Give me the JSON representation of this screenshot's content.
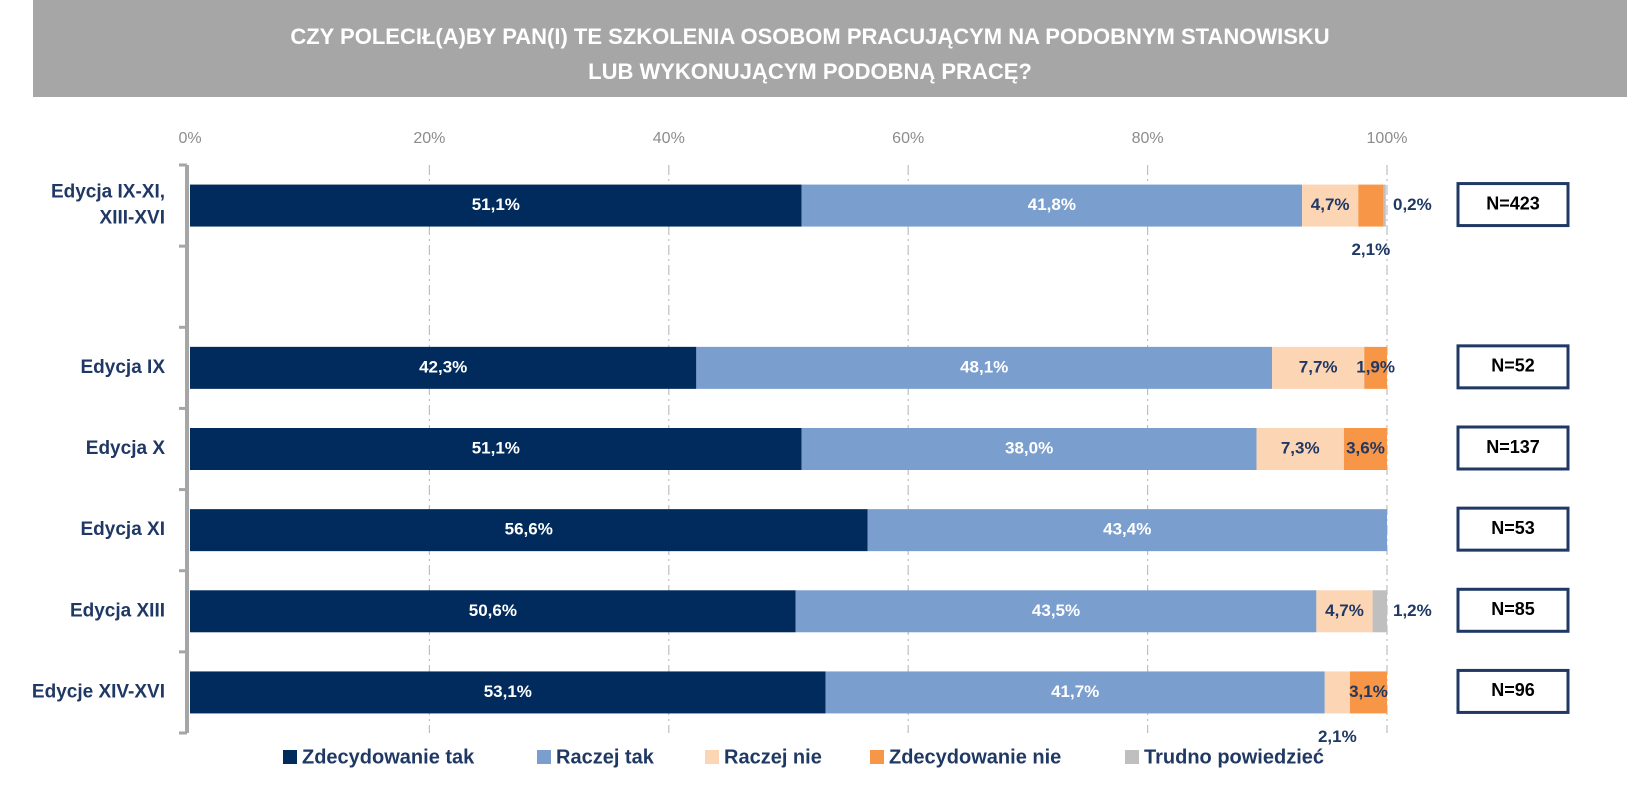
{
  "chart_data": {
    "type": "stacked_bar_horizontal",
    "title": [
      "CZY POLECIŁ(A)BY PAN(I) TE SZKOLENIA OSOBOM PRACUJĄCYM NA PODOBNYM STANOWISKU",
      "LUB WYKONUJĄCYM PODOBNĄ PRACĘ?"
    ],
    "categories": [
      [
        "Edycja IX-XI,",
        "XIII-XVI"
      ],
      null,
      "Edycja IX",
      "Edycja X",
      "Edycja XI",
      "Edycja XIII",
      "Edycje XIV-XVI"
    ],
    "series": [
      {
        "name": "Zdecydowanie tak",
        "color": "#002b5c",
        "values": [
          51.1,
          null,
          42.3,
          51.1,
          56.6,
          50.6,
          53.1
        ],
        "value_labels": [
          "51,1%",
          null,
          "42,3%",
          "51,1%",
          "56,6%",
          "50,6%",
          "53,1%"
        ]
      },
      {
        "name": "Raczej tak",
        "color": "#7a9fcf",
        "values": [
          41.8,
          null,
          48.1,
          38.0,
          43.4,
          43.5,
          41.7
        ],
        "value_labels": [
          "41,8%",
          null,
          "48,1%",
          "38,0%",
          "43,4%",
          "43,5%",
          "41,7%"
        ]
      },
      {
        "name": "Raczej nie",
        "color": "#fcd5b5",
        "values": [
          4.7,
          null,
          7.7,
          7.3,
          null,
          4.7,
          2.1
        ],
        "value_labels": [
          "4,7%",
          null,
          "7,7%",
          "7,3%",
          null,
          "4,7%",
          "2,1%"
        ]
      },
      {
        "name": "Zdecydowanie nie",
        "color": "#f79646",
        "values": [
          2.1,
          null,
          1.9,
          3.6,
          null,
          null,
          3.1
        ],
        "value_labels": [
          "2,1%",
          null,
          "1,9%",
          "3,6%",
          null,
          null,
          "3,1%"
        ]
      },
      {
        "name": "Trudno powiedzieć",
        "color": "#bfbfbf",
        "values": [
          0.2,
          null,
          null,
          null,
          null,
          1.2,
          null
        ],
        "value_labels": [
          "0,2%",
          null,
          null,
          null,
          null,
          "1,2%",
          null
        ]
      }
    ],
    "n_labels": [
      "N=423",
      null,
      "N=52",
      "N=137",
      "N=53",
      "N=85",
      "N=96"
    ],
    "xlim": [
      0,
      100
    ],
    "xticks": [
      {
        "value": 0,
        "label": "0%"
      },
      {
        "value": 20,
        "label": "20%"
      },
      {
        "value": 40,
        "label": "40%"
      },
      {
        "value": 60,
        "label": "60%"
      },
      {
        "value": 80,
        "label": "80%"
      },
      {
        "value": 100,
        "label": "100%"
      }
    ],
    "grid": true,
    "legend": "bottom"
  }
}
